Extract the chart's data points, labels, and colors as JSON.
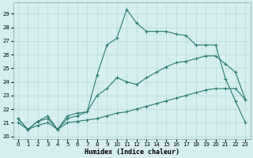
{
  "bg_color": "#d6eef0",
  "grid_color": "#b8d8db",
  "line_color": "#2a7a72",
  "xlim": [
    -0.5,
    23.5
  ],
  "ylim": [
    19.8,
    29.8
  ],
  "xticks": [
    0,
    1,
    2,
    3,
    4,
    5,
    6,
    7,
    8,
    9,
    10,
    11,
    12,
    13,
    14,
    15,
    16,
    17,
    18,
    19,
    20,
    21,
    22,
    23
  ],
  "yticks": [
    20,
    21,
    22,
    23,
    24,
    25,
    26,
    27,
    28,
    29
  ],
  "xlabel": "Humidex (Indice chaleur)",
  "line1": {
    "x": [
      0,
      1,
      2,
      3,
      4,
      5,
      6,
      7,
      8,
      9,
      10,
      11,
      12,
      13,
      14,
      15,
      16,
      17,
      18,
      19,
      20,
      21,
      22,
      23
    ],
    "y": [
      21.3,
      20.5,
      21.1,
      21.5,
      20.5,
      21.5,
      21.7,
      21.8,
      24.5,
      26.7,
      27.2,
      29.3,
      28.3,
      27.7,
      27.7,
      27.7,
      27.5,
      27.4,
      26.7,
      26.7,
      26.7,
      24.2,
      22.6,
      21.0
    ]
  },
  "line2": {
    "x": [
      0,
      1,
      2,
      3,
      4,
      5,
      6,
      7,
      8,
      9,
      10,
      11,
      12,
      13,
      14,
      15,
      16,
      17,
      18,
      19,
      20,
      21,
      22,
      23
    ],
    "y": [
      21.3,
      20.5,
      21.1,
      21.3,
      20.5,
      21.3,
      21.5,
      21.8,
      23.0,
      23.5,
      24.3,
      24.0,
      23.8,
      24.3,
      24.7,
      25.1,
      25.4,
      25.5,
      25.7,
      25.9,
      25.9,
      25.3,
      24.7,
      22.7
    ]
  },
  "line3": {
    "x": [
      0,
      1,
      2,
      3,
      4,
      5,
      6,
      7,
      8,
      9,
      10,
      11,
      12,
      13,
      14,
      15,
      16,
      17,
      18,
      19,
      20,
      21,
      22,
      23
    ],
    "y": [
      21.0,
      20.5,
      20.8,
      21.0,
      20.5,
      21.0,
      21.1,
      21.2,
      21.3,
      21.5,
      21.7,
      21.8,
      22.0,
      22.2,
      22.4,
      22.6,
      22.8,
      23.0,
      23.2,
      23.4,
      23.5,
      23.5,
      23.5,
      22.7
    ]
  }
}
